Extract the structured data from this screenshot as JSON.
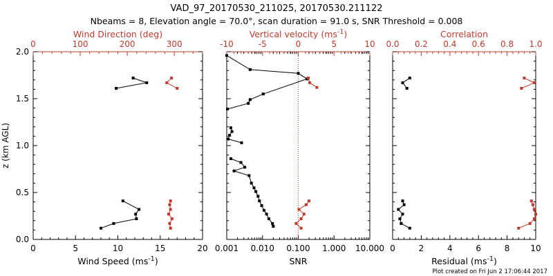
{
  "title_line1": "VAD_97_20170530_211025, 20170530.211122",
  "title_line2": "Nbeams = 8, Elevation angle = 70.0°, scan duration = 91.0 s, SNR Threshold = 0.008",
  "footer": "Plot created on Fri Jun  2 17:06:44 2017",
  "colors": {
    "black": "#000000",
    "red": "#c0392b",
    "dotted_line": "#c0392b"
  },
  "chart_data": [
    {
      "type": "line",
      "ylabel": "z (km AGL)",
      "ylim": [
        0.0,
        2.0
      ],
      "yticks": [
        "0.0",
        "0.5",
        "1.0",
        "1.5",
        "2.0"
      ],
      "bottom_axis": {
        "label": "Wind Speed (ms",
        "label_sup": "-1",
        "label_end": ")",
        "range": [
          0,
          20
        ],
        "ticks": [
          "0",
          "5",
          "10",
          "15",
          "20"
        ]
      },
      "top_axis": {
        "label": "Wind Direction (deg)",
        "range": [
          0,
          360
        ],
        "ticks": [
          "0",
          "100",
          "200",
          "300"
        ]
      },
      "series": [
        {
          "axis": "bottom",
          "color": "black",
          "segments": [
            [
              [
                9.8,
                1.61
              ],
              [
                13.4,
                1.67
              ],
              [
                11.8,
                1.72
              ]
            ],
            [
              [
                8.0,
                0.12
              ],
              [
                9.5,
                0.17
              ],
              [
                12.2,
                0.22
              ],
              [
                12.1,
                0.27
              ],
              [
                12.5,
                0.32
              ],
              [
                10.6,
                0.41
              ]
            ]
          ]
        },
        {
          "axis": "top",
          "color": "red",
          "segments": [
            [
              [
                306,
                1.61
              ],
              [
                284,
                1.67
              ],
              [
                294,
                1.72
              ]
            ],
            [
              [
                292,
                0.12
              ],
              [
                290,
                0.17
              ],
              [
                295,
                0.22
              ],
              [
                288,
                0.27
              ],
              [
                292,
                0.32
              ],
              [
                290,
                0.37
              ],
              [
                292,
                0.41
              ]
            ]
          ]
        }
      ]
    },
    {
      "type": "line",
      "ylim": [
        0.0,
        2.0
      ],
      "bottom_axis": {
        "label": "SNR",
        "scale": "log",
        "range": [
          0.001,
          10.0
        ],
        "ticks": [
          "0.001",
          "0.010",
          "0.100",
          "1.000",
          "10.000"
        ],
        "tick_values": [
          0.001,
          0.01,
          0.1,
          1.0,
          10.0
        ]
      },
      "top_axis": {
        "label": "Vertical velocity (ms",
        "label_sup": "-1",
        "label_end": ")",
        "range": [
          -10,
          10
        ],
        "ticks": [
          "-10",
          "-5",
          "0",
          "5",
          "10"
        ]
      },
      "reference_line": {
        "axis": "bottom",
        "value": 0.1,
        "style": "dotted"
      },
      "series": [
        {
          "axis": "bottom",
          "color": "black",
          "segments": [
            [
              [
                0.001,
                1.96
              ],
              [
                0.0045,
                1.81
              ],
              [
                0.1,
                1.77
              ],
              [
                0.175,
                1.71
              ],
              [
                0.0105,
                1.55
              ],
              [
                0.0045,
                1.49
              ],
              [
                0.004,
                1.45
              ],
              [
                0.00105,
                1.39
              ]
            ],
            [
              [
                0.0013,
                1.19
              ],
              [
                0.0014,
                1.15
              ],
              [
                0.0012,
                1.11
              ],
              [
                0.0011,
                1.07
              ],
              [
                0.0026,
                1.03
              ]
            ],
            [
              [
                0.0013,
                0.86
              ],
              [
                0.0025,
                0.82
              ],
              [
                0.0032,
                0.77
              ],
              [
                0.0016,
                0.73
              ],
              [
                0.0042,
                0.68
              ],
              [
                0.0049,
                0.6
              ],
              [
                0.0058,
                0.55
              ],
              [
                0.0065,
                0.51
              ],
              [
                0.0075,
                0.46
              ],
              [
                0.0082,
                0.41
              ],
              [
                0.0095,
                0.36
              ],
              [
                0.011,
                0.31
              ],
              [
                0.013,
                0.27
              ],
              [
                0.015,
                0.22
              ],
              [
                0.019,
                0.17
              ],
              [
                0.02,
                0.14
              ]
            ]
          ]
        },
        {
          "axis": "top",
          "color": "red",
          "segments": [
            [
              [
                2.6,
                1.62
              ],
              [
                1.6,
                1.67
              ],
              [
                1.4,
                1.72
              ]
            ],
            [
              [
                0.4,
                0.12
              ],
              [
                -0.3,
                0.17
              ],
              [
                0.4,
                0.22
              ],
              [
                0.8,
                0.27
              ],
              [
                0.1,
                0.32
              ],
              [
                1.1,
                0.37
              ],
              [
                1.5,
                0.41
              ]
            ]
          ]
        }
      ]
    },
    {
      "type": "line",
      "ylim": [
        0.0,
        2.0
      ],
      "bottom_axis": {
        "label": "Residual (ms",
        "label_sup": "-1",
        "label_end": ")",
        "range": [
          0,
          10
        ],
        "ticks": [
          "0",
          "2",
          "4",
          "6",
          "8",
          "10"
        ]
      },
      "top_axis": {
        "label": "Correlation",
        "range": [
          0.0,
          1.0
        ],
        "ticks": [
          "0.0",
          "0.2",
          "0.4",
          "0.6",
          "0.8",
          "1.0"
        ]
      },
      "series": [
        {
          "axis": "bottom",
          "color": "black",
          "segments": [
            [
              [
                1.0,
                1.61
              ],
              [
                0.7,
                1.67
              ],
              [
                1.2,
                1.72
              ]
            ],
            [
              [
                1.2,
                0.12
              ],
              [
                0.6,
                0.17
              ],
              [
                0.5,
                0.22
              ],
              [
                0.7,
                0.27
              ],
              [
                0.4,
                0.32
              ],
              [
                0.8,
                0.37
              ],
              [
                0.7,
                0.41
              ]
            ]
          ]
        },
        {
          "axis": "top",
          "color": "red",
          "segments": [
            [
              [
                0.9,
                1.61
              ],
              [
                0.99,
                1.67
              ],
              [
                0.92,
                1.72
              ]
            ],
            [
              [
                0.88,
                0.12
              ],
              [
                0.96,
                0.17
              ],
              [
                0.99,
                0.22
              ],
              [
                1.0,
                0.27
              ],
              [
                0.99,
                0.32
              ],
              [
                0.98,
                0.37
              ],
              [
                0.97,
                0.41
              ]
            ]
          ]
        }
      ]
    }
  ]
}
